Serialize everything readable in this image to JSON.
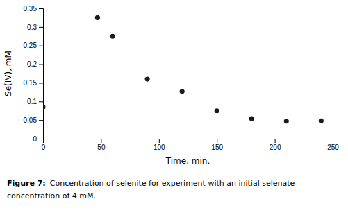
{
  "chart_data": {
    "type": "scatter",
    "x": [
      0,
      47,
      60,
      90,
      120,
      150,
      180,
      210,
      240
    ],
    "y": [
      0.085,
      0.325,
      0.275,
      0.16,
      0.127,
      0.075,
      0.054,
      0.047,
      0.048
    ],
    "xlabel": "Time, min.",
    "ylabel": "Se(IV), mM",
    "xlim": [
      0,
      250
    ],
    "ylim": [
      0,
      0.35
    ],
    "xticks": [
      0,
      50,
      100,
      150,
      200,
      250
    ],
    "yticks": [
      0,
      0.05,
      0.1,
      0.15,
      0.2,
      0.25,
      0.3,
      0.35
    ],
    "color": "#1a1a1a",
    "marker": "circle",
    "annotations": [
      "Figure 7:",
      "Concentration of selenite for experiment with an initial selenate",
      "concentration of 4 mM."
    ]
  }
}
